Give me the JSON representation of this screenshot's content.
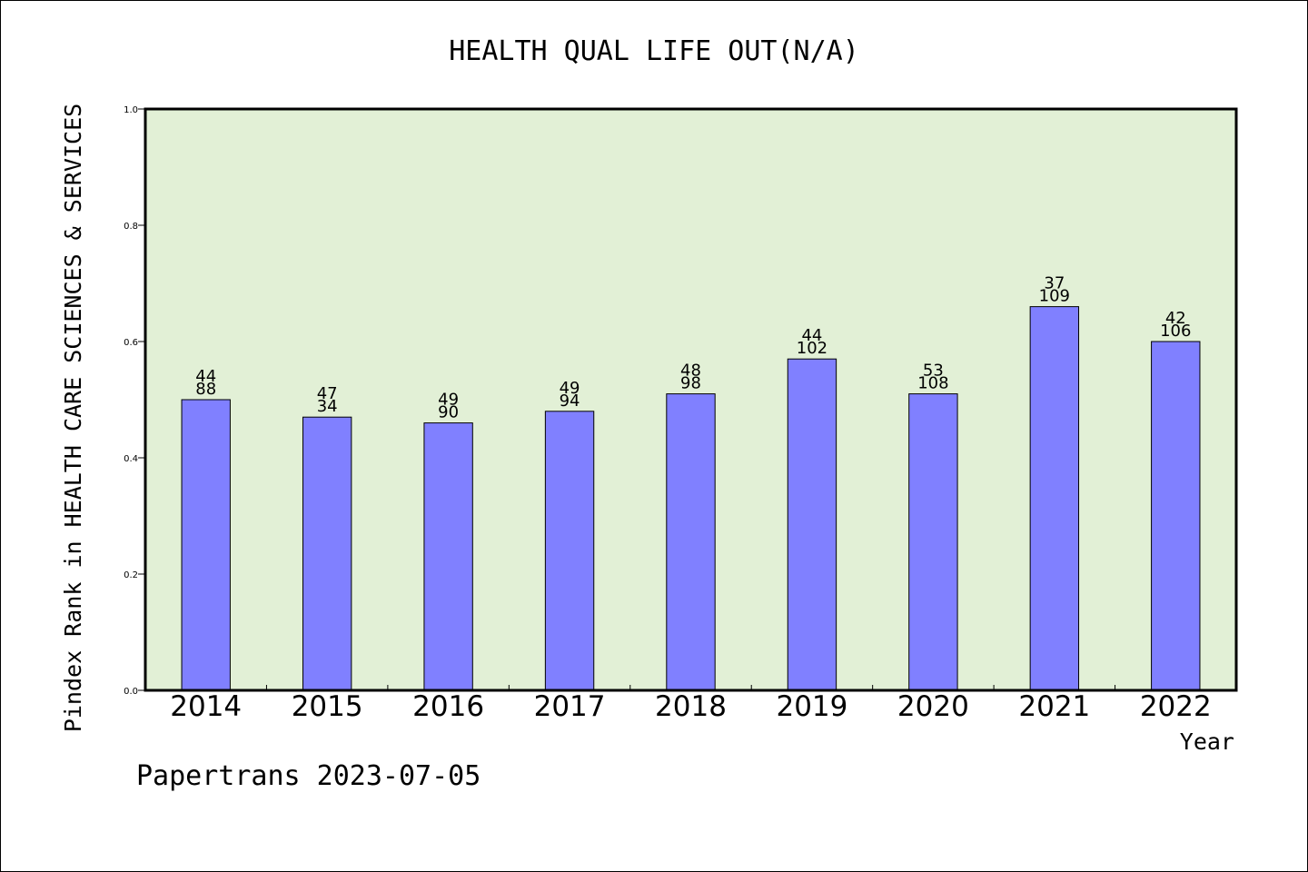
{
  "chart_data": {
    "type": "bar",
    "title": "HEALTH QUAL LIFE OUT(N/A)",
    "xlabel": "Year",
    "ylabel": "Pindex Rank in HEALTH CARE SCIENCES & SERVICES",
    "categories": [
      "2014",
      "2015",
      "2016",
      "2017",
      "2018",
      "2019",
      "2020",
      "2021",
      "2022"
    ],
    "values": [
      0.5,
      0.47,
      0.46,
      0.48,
      0.51,
      0.57,
      0.51,
      0.66,
      0.6
    ],
    "labels_top": [
      "44",
      "47",
      "49",
      "49",
      "48",
      "44",
      "53",
      "37",
      "42"
    ],
    "labels_bottom": [
      "88",
      "34",
      "90",
      "94",
      "98",
      "102",
      "108",
      "109",
      "106"
    ],
    "ylim": [
      0,
      1.0
    ],
    "yticks": [
      "0.0",
      "0.2",
      "0.4",
      "0.6",
      "0.8",
      "1.0"
    ],
    "grid": false,
    "colors": {
      "plot_background": "#e2f0d6",
      "bar_fill": "#8080ff",
      "bar_stroke": "#000000"
    }
  },
  "footer": {
    "text": "Papertrans 2023-07-05"
  }
}
